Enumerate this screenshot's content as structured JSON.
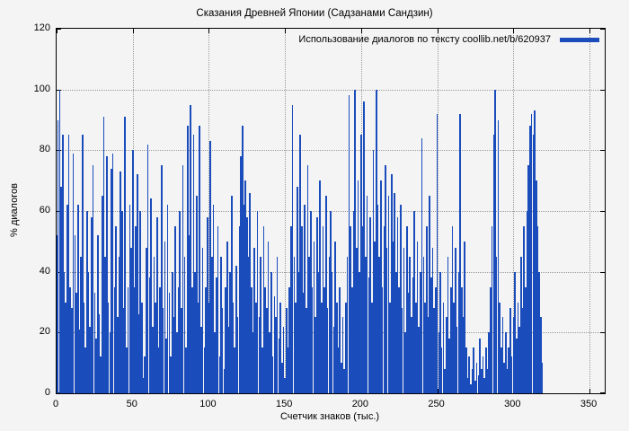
{
  "colors": {
    "bar": "#1a4cbc",
    "grid": "#9a9a9a",
    "axis": "#000000",
    "background": "#f4f4f4"
  },
  "chart_data": {
    "type": "bar",
    "title": "Сказания Древней Японии (Садзанами Сандзин)",
    "xlabel": "Счетчик знаков (тыс.)",
    "ylabel": "% диалогов",
    "xlim": [
      0,
      360
    ],
    "ylim": [
      0,
      120
    ],
    "xticks": [
      0,
      50,
      100,
      150,
      200,
      250,
      300,
      350
    ],
    "yticks": [
      0,
      20,
      40,
      60,
      80,
      100,
      120
    ],
    "grid": true,
    "legend_position": "top-right",
    "x_start": 0,
    "x_step": 1,
    "series": [
      {
        "name": "Использование диалогов по тексту coollib.net/b/620937",
        "values": [
          52,
          90,
          100,
          68,
          85,
          40,
          30,
          62,
          85,
          35,
          28,
          79,
          52,
          33,
          62,
          21,
          45,
          85,
          30,
          15,
          60,
          40,
          22,
          58,
          75,
          33,
          18,
          52,
          26,
          12,
          65,
          91,
          45,
          78,
          30,
          20,
          74,
          79,
          35,
          55,
          25,
          45,
          73,
          60,
          28,
          91,
          15,
          35,
          62,
          48,
          80,
          35,
          55,
          72,
          26,
          60,
          30,
          5,
          12,
          48,
          82,
          38,
          64,
          22,
          45,
          30,
          58,
          15,
          35,
          75,
          28,
          50,
          18,
          62,
          33,
          12,
          40,
          25,
          55,
          20,
          35,
          60,
          28,
          75,
          45,
          15,
          88,
          52,
          95,
          35,
          85,
          40,
          65,
          30,
          88,
          22,
          48,
          15,
          35,
          58,
          30,
          83,
          45,
          62,
          20,
          38,
          55,
          12,
          45,
          28,
          8,
          35,
          50,
          22,
          40,
          65,
          30,
          15,
          42,
          25,
          55,
          78,
          88,
          62,
          70,
          58,
          45,
          66,
          35,
          20,
          48,
          30,
          60,
          25,
          45,
          15,
          55,
          35,
          28,
          50,
          20,
          40,
          12,
          32,
          25,
          45,
          18,
          30,
          10,
          22,
          5,
          28,
          15,
          35,
          55,
          95,
          45,
          30,
          68,
          40,
          85,
          55,
          33,
          62,
          28,
          75,
          45,
          60,
          35,
          50,
          25,
          58,
          40,
          70,
          30,
          55,
          35,
          65,
          28,
          45,
          60,
          40,
          22,
          50,
          30,
          15,
          35,
          10,
          25,
          8,
          30,
          45,
          98,
          55,
          35,
          60,
          100,
          48,
          70,
          40,
          85,
          55,
          96,
          45,
          65,
          38,
          58,
          30,
          80,
          50,
          100,
          62,
          45,
          70,
          35,
          55,
          75,
          48,
          65,
          30,
          72,
          50,
          66,
          40,
          58,
          35,
          62,
          28,
          48,
          20,
          55,
          33,
          45,
          25,
          38,
          60,
          30,
          50,
          22,
          40,
          84,
          45,
          30,
          55,
          25,
          65,
          38,
          48,
          28,
          35,
          92,
          20,
          40,
          15,
          30,
          8,
          25,
          45,
          18,
          35,
          55,
          30,
          48,
          22,
          40,
          92,
          35,
          25,
          50,
          15,
          5,
          12,
          3,
          8,
          15,
          4,
          10,
          6,
          18,
          8,
          12,
          5,
          15,
          8,
          20,
          35,
          55,
          85,
          100,
          45,
          90,
          30,
          15,
          25,
          10,
          20,
          8,
          15,
          28,
          12,
          25,
          40,
          18,
          30,
          22,
          45,
          28,
          55,
          35,
          60,
          75,
          88,
          92,
          85,
          93,
          70,
          55,
          40,
          25,
          10
        ]
      }
    ]
  }
}
